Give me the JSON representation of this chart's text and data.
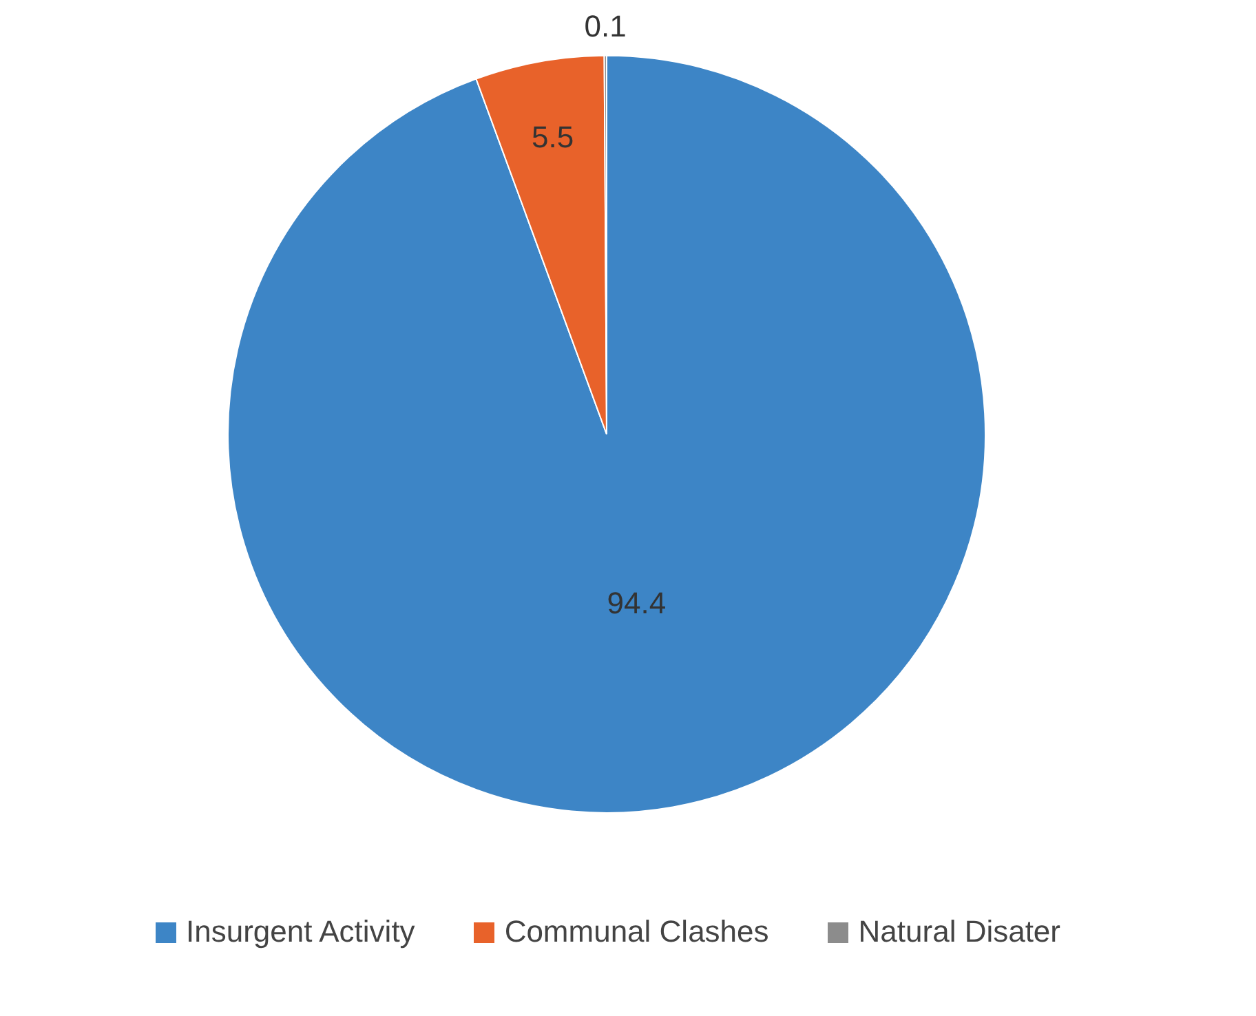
{
  "chart_data": {
    "type": "pie",
    "categories": [
      "Insurgent Activity",
      "Communal Clashes",
      "Natural Disater"
    ],
    "values": [
      94.4,
      5.5,
      0.1
    ],
    "colors": [
      "#3d85c6",
      "#e8622a",
      "#8c8c8c"
    ],
    "data_labels": true,
    "legend": "bottom"
  }
}
